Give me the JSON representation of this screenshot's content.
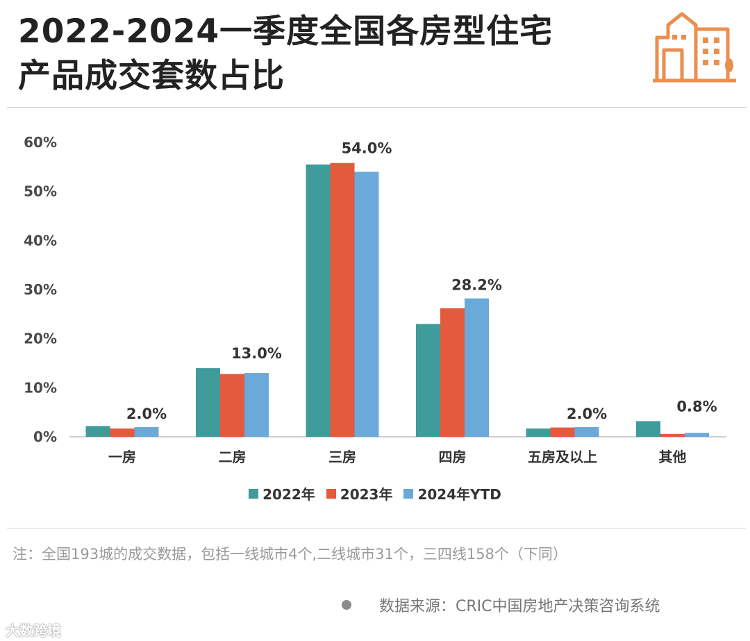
{
  "title": {
    "line1": "2022-2024一季度全国各房型住宅",
    "line2": "产品成交套数占比"
  },
  "colors": {
    "s2022": "#3f9c9a",
    "s2023": "#e35a3d",
    "s2024": "#6aa9d9",
    "logo": "#eb8e4e"
  },
  "logo_icon": "city-buildings-icon",
  "chart_data": {
    "type": "bar",
    "categories": [
      "一房",
      "二房",
      "三房",
      "四房",
      "五房及以上",
      "其他"
    ],
    "series": [
      {
        "name": "2022年",
        "values": [
          2.2,
          14.0,
          55.5,
          23.0,
          1.7,
          3.2
        ]
      },
      {
        "name": "2023年",
        "values": [
          1.7,
          12.8,
          55.8,
          26.2,
          1.9,
          0.6
        ]
      },
      {
        "name": "2024年YTD",
        "values": [
          2.0,
          13.0,
          54.0,
          28.2,
          2.0,
          0.8
        ]
      }
    ],
    "data_labels": [
      "2.0%",
      "13.0%",
      "54.0%",
      "28.2%",
      "2.0%",
      "0.8%"
    ],
    "yticks": [
      "0%",
      "10%",
      "20%",
      "30%",
      "40%",
      "50%",
      "60%"
    ],
    "ylim": [
      0,
      60
    ],
    "legend_position": "bottom-center",
    "grid": false
  },
  "note": "注：全国193城的成交数据，包括一线城市4个,二线城市31个，三四线158个（下同）",
  "source": "数据来源：CRIC中国房地产决策咨询系统",
  "watermark": "大数跨境"
}
